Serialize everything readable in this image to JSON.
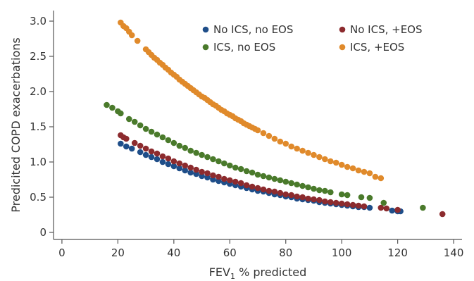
{
  "chart_data": {
    "type": "scatter",
    "title": "",
    "xlabel": "FEV",
    "xlabel_subscript": "1",
    "xlabel_suffix": " % predicted",
    "ylabel": "Predicited COPD exacerbations",
    "xlim": [
      -3,
      143
    ],
    "ylim": [
      -0.1,
      3.15
    ],
    "xticks": [
      0,
      20,
      40,
      60,
      80,
      100,
      120,
      140
    ],
    "yticks": [
      0,
      0.5,
      1.0,
      1.5,
      2.0,
      2.5,
      3.0
    ],
    "xtick_labels": [
      "0",
      "20",
      "40",
      "60",
      "80",
      "100",
      "120",
      "140"
    ],
    "ytick_labels": [
      "0",
      "0.5",
      "1.0",
      "1.5",
      "2.0",
      "2.5",
      "3.0"
    ],
    "legend_position": "top-right",
    "grid": false,
    "series": [
      {
        "name": "No ICS, no EOS",
        "color": "#1f4e89",
        "points": [
          [
            21,
            1.26
          ],
          [
            23,
            1.22
          ],
          [
            25,
            1.19
          ],
          [
            28,
            1.14
          ],
          [
            30,
            1.1
          ],
          [
            32,
            1.07
          ],
          [
            34,
            1.04
          ],
          [
            36,
            1.0
          ],
          [
            38,
            0.97
          ],
          [
            40,
            0.94
          ],
          [
            42,
            0.91
          ],
          [
            44,
            0.88
          ],
          [
            46,
            0.85
          ],
          [
            48,
            0.83
          ],
          [
            50,
            0.8
          ],
          [
            52,
            0.78
          ],
          [
            54,
            0.75
          ],
          [
            56,
            0.73
          ],
          [
            58,
            0.71
          ],
          [
            60,
            0.69
          ],
          [
            62,
            0.67
          ],
          [
            64,
            0.65
          ],
          [
            66,
            0.63
          ],
          [
            68,
            0.61
          ],
          [
            70,
            0.59
          ],
          [
            72,
            0.58
          ],
          [
            74,
            0.56
          ],
          [
            76,
            0.54
          ],
          [
            78,
            0.53
          ],
          [
            80,
            0.51
          ],
          [
            82,
            0.5
          ],
          [
            84,
            0.48
          ],
          [
            86,
            0.47
          ],
          [
            88,
            0.46
          ],
          [
            90,
            0.45
          ],
          [
            92,
            0.43
          ],
          [
            94,
            0.42
          ],
          [
            96,
            0.41
          ],
          [
            98,
            0.4
          ],
          [
            100,
            0.39
          ],
          [
            102,
            0.38
          ],
          [
            104,
            0.37
          ],
          [
            106,
            0.36
          ],
          [
            108,
            0.36
          ],
          [
            110,
            0.35
          ],
          [
            118,
            0.31
          ],
          [
            120,
            0.3
          ],
          [
            121,
            0.3
          ]
        ]
      },
      {
        "name": "No ICS, +EOS",
        "color": "#8c2b2e",
        "points": [
          [
            21,
            1.38
          ],
          [
            22,
            1.35
          ],
          [
            23,
            1.33
          ],
          [
            26,
            1.27
          ],
          [
            28,
            1.23
          ],
          [
            30,
            1.19
          ],
          [
            32,
            1.15
          ],
          [
            34,
            1.12
          ],
          [
            36,
            1.08
          ],
          [
            38,
            1.05
          ],
          [
            40,
            1.01
          ],
          [
            42,
            0.98
          ],
          [
            44,
            0.95
          ],
          [
            46,
            0.92
          ],
          [
            48,
            0.89
          ],
          [
            50,
            0.86
          ],
          [
            52,
            0.84
          ],
          [
            54,
            0.81
          ],
          [
            56,
            0.79
          ],
          [
            58,
            0.76
          ],
          [
            60,
            0.74
          ],
          [
            62,
            0.72
          ],
          [
            64,
            0.7
          ],
          [
            66,
            0.67
          ],
          [
            68,
            0.65
          ],
          [
            70,
            0.63
          ],
          [
            72,
            0.61
          ],
          [
            74,
            0.59
          ],
          [
            76,
            0.58
          ],
          [
            78,
            0.56
          ],
          [
            80,
            0.54
          ],
          [
            82,
            0.53
          ],
          [
            84,
            0.51
          ],
          [
            86,
            0.5
          ],
          [
            88,
            0.48
          ],
          [
            90,
            0.47
          ],
          [
            92,
            0.46
          ],
          [
            94,
            0.44
          ],
          [
            96,
            0.43
          ],
          [
            98,
            0.42
          ],
          [
            100,
            0.41
          ],
          [
            102,
            0.4
          ],
          [
            104,
            0.39
          ],
          [
            106,
            0.38
          ],
          [
            108,
            0.37
          ],
          [
            114,
            0.35
          ],
          [
            116,
            0.34
          ],
          [
            120,
            0.32
          ],
          [
            136,
            0.26
          ]
        ]
      },
      {
        "name": "ICS, no EOS",
        "color": "#4a7a2b",
        "points": [
          [
            16,
            1.81
          ],
          [
            18,
            1.77
          ],
          [
            20,
            1.72
          ],
          [
            21,
            1.69
          ],
          [
            24,
            1.61
          ],
          [
            26,
            1.57
          ],
          [
            28,
            1.52
          ],
          [
            30,
            1.47
          ],
          [
            32,
            1.43
          ],
          [
            34,
            1.39
          ],
          [
            36,
            1.35
          ],
          [
            38,
            1.31
          ],
          [
            40,
            1.27
          ],
          [
            42,
            1.23
          ],
          [
            44,
            1.2
          ],
          [
            46,
            1.16
          ],
          [
            48,
            1.13
          ],
          [
            50,
            1.1
          ],
          [
            52,
            1.07
          ],
          [
            54,
            1.04
          ],
          [
            56,
            1.01
          ],
          [
            58,
            0.98
          ],
          [
            60,
            0.95
          ],
          [
            62,
            0.92
          ],
          [
            64,
            0.9
          ],
          [
            66,
            0.87
          ],
          [
            68,
            0.85
          ],
          [
            70,
            0.82
          ],
          [
            72,
            0.8
          ],
          [
            74,
            0.78
          ],
          [
            76,
            0.76
          ],
          [
            78,
            0.74
          ],
          [
            80,
            0.72
          ],
          [
            82,
            0.7
          ],
          [
            84,
            0.68
          ],
          [
            86,
            0.66
          ],
          [
            88,
            0.64
          ],
          [
            90,
            0.62
          ],
          [
            92,
            0.6
          ],
          [
            94,
            0.59
          ],
          [
            96,
            0.57
          ],
          [
            100,
            0.54
          ],
          [
            102,
            0.53
          ],
          [
            107,
            0.5
          ],
          [
            110,
            0.49
          ],
          [
            115,
            0.42
          ],
          [
            129,
            0.35
          ]
        ]
      },
      {
        "name": "ICS, +EOS",
        "color": "#e08a2b",
        "points": [
          [
            21,
            2.98
          ],
          [
            22,
            2.93
          ],
          [
            23,
            2.9
          ],
          [
            24,
            2.85
          ],
          [
            25,
            2.8
          ],
          [
            27,
            2.72
          ],
          [
            30,
            2.6
          ],
          [
            31,
            2.56
          ],
          [
            32,
            2.52
          ],
          [
            33,
            2.48
          ],
          [
            34,
            2.45
          ],
          [
            35,
            2.41
          ],
          [
            36,
            2.38
          ],
          [
            37,
            2.34
          ],
          [
            38,
            2.31
          ],
          [
            39,
            2.27
          ],
          [
            40,
            2.24
          ],
          [
            41,
            2.21
          ],
          [
            42,
            2.17
          ],
          [
            43,
            2.14
          ],
          [
            44,
            2.11
          ],
          [
            45,
            2.08
          ],
          [
            46,
            2.05
          ],
          [
            47,
            2.02
          ],
          [
            48,
            1.99
          ],
          [
            49,
            1.96
          ],
          [
            50,
            1.93
          ],
          [
            51,
            1.91
          ],
          [
            52,
            1.88
          ],
          [
            53,
            1.85
          ],
          [
            54,
            1.82
          ],
          [
            55,
            1.8
          ],
          [
            56,
            1.77
          ],
          [
            57,
            1.74
          ],
          [
            58,
            1.72
          ],
          [
            59,
            1.69
          ],
          [
            60,
            1.67
          ],
          [
            61,
            1.65
          ],
          [
            62,
            1.62
          ],
          [
            63,
            1.6
          ],
          [
            64,
            1.58
          ],
          [
            65,
            1.55
          ],
          [
            66,
            1.53
          ],
          [
            67,
            1.51
          ],
          [
            68,
            1.49
          ],
          [
            69,
            1.47
          ],
          [
            70,
            1.45
          ],
          [
            72,
            1.41
          ],
          [
            74,
            1.37
          ],
          [
            76,
            1.33
          ],
          [
            78,
            1.29
          ],
          [
            80,
            1.26
          ],
          [
            82,
            1.22
          ],
          [
            84,
            1.19
          ],
          [
            86,
            1.16
          ],
          [
            88,
            1.13
          ],
          [
            90,
            1.1
          ],
          [
            92,
            1.07
          ],
          [
            94,
            1.04
          ],
          [
            96,
            1.01
          ],
          [
            98,
            0.99
          ],
          [
            100,
            0.96
          ],
          [
            102,
            0.93
          ],
          [
            104,
            0.91
          ],
          [
            106,
            0.88
          ],
          [
            108,
            0.86
          ],
          [
            110,
            0.84
          ],
          [
            112,
            0.79
          ],
          [
            114,
            0.77
          ]
        ]
      }
    ]
  }
}
